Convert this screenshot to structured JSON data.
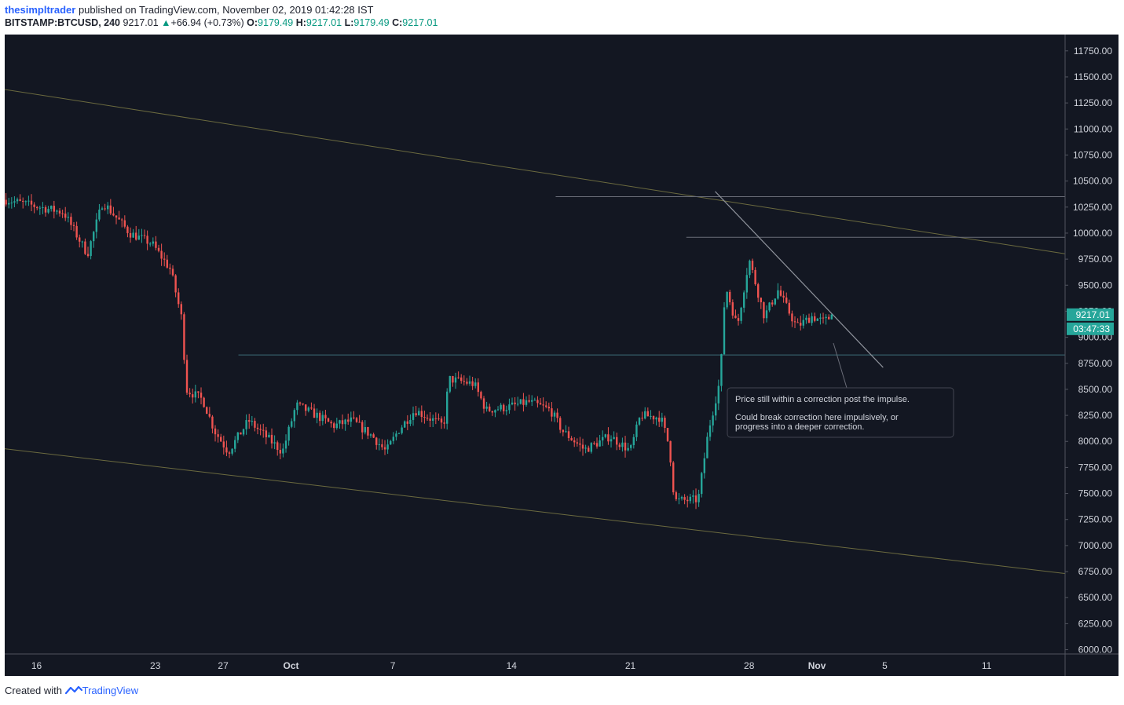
{
  "header": {
    "author": "thesimpltrader",
    "published": "published on TradingView.com, November 02, 2019 01:42:28 IST",
    "symbol": "BITSTAMP:BTCUSD, 240",
    "last": "9217.01",
    "change": "+66.94 (+0.73%)",
    "o_label": "O:",
    "o_value": "9179.49",
    "h_label": "H:",
    "h_value": "9217.01",
    "l_label": "L:",
    "l_value": "9179.49",
    "c_label": "C:",
    "c_value": "9217.01"
  },
  "footer": {
    "created": "Created with",
    "brand": "TradingView"
  },
  "colors": {
    "up": "#26a69a",
    "down": "#ef5350",
    "bg": "#131722",
    "line": "#8b8f75",
    "axis": "#d1d4dc"
  },
  "chart_data": {
    "type": "candlestick",
    "y_ticks": [
      "11750.00",
      "11500.00",
      "11250.00",
      "11000.00",
      "10750.00",
      "10500.00",
      "10250.00",
      "10000.00",
      "9750.00",
      "9500.00",
      "9250.00",
      "9000.00",
      "8750.00",
      "8500.00",
      "8250.00",
      "8000.00",
      "7750.00",
      "7500.00",
      "7250.00",
      "7000.00",
      "6750.00",
      "6500.00",
      "6250.00",
      "6000.00"
    ],
    "x_ticks": [
      {
        "label": "16",
        "day": 16
      },
      {
        "label": "23",
        "day": 23
      },
      {
        "label": "27",
        "day": 27
      },
      {
        "label": "Oct",
        "day": 31
      },
      {
        "label": "7",
        "day": 37
      },
      {
        "label": "14",
        "day": 44
      },
      {
        "label": "21",
        "day": 51
      },
      {
        "label": "28",
        "day": 58
      },
      {
        "label": "Nov",
        "day": 62
      },
      {
        "label": "5",
        "day": 66
      },
      {
        "label": "11",
        "day": 72
      }
    ],
    "ylim": [
      6000,
      11750
    ],
    "price_label": "9217.01",
    "countdown": "03:47:33",
    "annotation": [
      "Price still within a correction post the impulse.",
      "",
      "Could break correction here impulsively, or",
      "progress into a deeper correction."
    ],
    "anchors": [
      [
        14.2,
        10320
      ],
      [
        17.6,
        10200
      ],
      [
        19.0,
        9800
      ],
      [
        19.9,
        10300
      ],
      [
        21.5,
        10000
      ],
      [
        22.8,
        9900
      ],
      [
        23.9,
        9650
      ],
      [
        24.6,
        9150
      ],
      [
        24.8,
        8500
      ],
      [
        25.8,
        8400
      ],
      [
        26.5,
        8100
      ],
      [
        27.3,
        7900
      ],
      [
        28.5,
        8200
      ],
      [
        30.5,
        7900
      ],
      [
        31.3,
        8350
      ],
      [
        32.5,
        8250
      ],
      [
        33.5,
        8150
      ],
      [
        34.6,
        8200
      ],
      [
        35.8,
        8050
      ],
      [
        36.6,
        7900
      ],
      [
        37.3,
        8100
      ],
      [
        38.3,
        8300
      ],
      [
        40.0,
        8150
      ],
      [
        40.3,
        8600
      ],
      [
        41.8,
        8550
      ],
      [
        42.5,
        8300
      ],
      [
        43.8,
        8330
      ],
      [
        45.0,
        8380
      ],
      [
        46.3,
        8300
      ],
      [
        47.0,
        8100
      ],
      [
        48.3,
        7920
      ],
      [
        49.8,
        8050
      ],
      [
        51.0,
        7910
      ],
      [
        51.6,
        8250
      ],
      [
        52.8,
        8230
      ],
      [
        53.3,
        7950
      ],
      [
        53.6,
        7430
      ],
      [
        55.0,
        7440
      ],
      [
        55.6,
        8100
      ],
      [
        56.3,
        8600
      ],
      [
        56.6,
        9500
      ],
      [
        57.3,
        9100
      ],
      [
        58.0,
        9750
      ],
      [
        58.9,
        9200
      ],
      [
        59.7,
        9450
      ],
      [
        60.8,
        9100
      ],
      [
        61.7,
        9200
      ],
      [
        62.4,
        9150
      ],
      [
        63.0,
        9217
      ]
    ]
  }
}
